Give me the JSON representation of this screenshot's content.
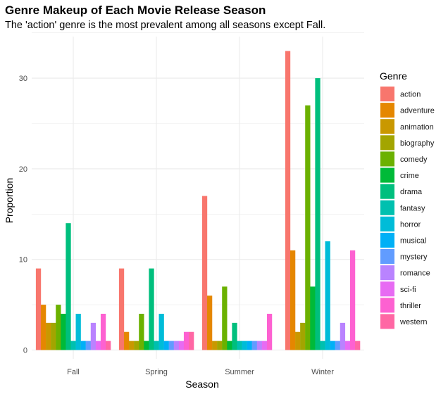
{
  "chart_data": {
    "type": "bar",
    "title": "Genre Makeup of Each Movie Release Season",
    "subtitle": "The 'action' genre is the most prevalent among all seasons except Fall.",
    "xlabel": "Season",
    "ylabel": "Proportion",
    "ylim": [
      0,
      35
    ],
    "yticks": [
      0,
      10,
      20,
      30
    ],
    "grid": true,
    "legend_title": "Genre",
    "legend_position": "right",
    "categories": [
      "Fall",
      "Spring",
      "Summer",
      "Winter"
    ],
    "series": [
      {
        "name": "action",
        "color": "#F8766D",
        "values": [
          9,
          9,
          17,
          33
        ]
      },
      {
        "name": "adventure",
        "color": "#E58700",
        "values": [
          5,
          2,
          6,
          11
        ]
      },
      {
        "name": "animation",
        "color": "#C99800",
        "values": [
          3,
          1,
          1,
          2
        ]
      },
      {
        "name": "biography",
        "color": "#A3A500",
        "values": [
          3,
          1,
          1,
          3
        ]
      },
      {
        "name": "comedy",
        "color": "#6BB100",
        "values": [
          5,
          4,
          7,
          27
        ]
      },
      {
        "name": "crime",
        "color": "#00BA38",
        "values": [
          4,
          1,
          1,
          7
        ]
      },
      {
        "name": "drama",
        "color": "#00BF7D",
        "values": [
          14,
          9,
          3,
          30
        ]
      },
      {
        "name": "fantasy",
        "color": "#00C0AF",
        "values": [
          1,
          1,
          1,
          1
        ]
      },
      {
        "name": "horror",
        "color": "#00BCD8",
        "values": [
          4,
          4,
          1,
          12
        ]
      },
      {
        "name": "musical",
        "color": "#00B0F6",
        "values": [
          1,
          1,
          1,
          1
        ]
      },
      {
        "name": "mystery",
        "color": "#619CFF",
        "values": [
          1,
          1,
          1,
          1
        ]
      },
      {
        "name": "romance",
        "color": "#B983FF",
        "values": [
          3,
          1,
          1,
          3
        ]
      },
      {
        "name": "sci-fi",
        "color": "#E76BF3",
        "values": [
          1,
          1,
          1,
          1
        ]
      },
      {
        "name": "thriller",
        "color": "#FD61D1",
        "values": [
          4,
          2,
          4,
          11
        ]
      },
      {
        "name": "western",
        "color": "#FF67A4",
        "values": [
          1,
          2,
          0,
          1
        ]
      }
    ]
  }
}
